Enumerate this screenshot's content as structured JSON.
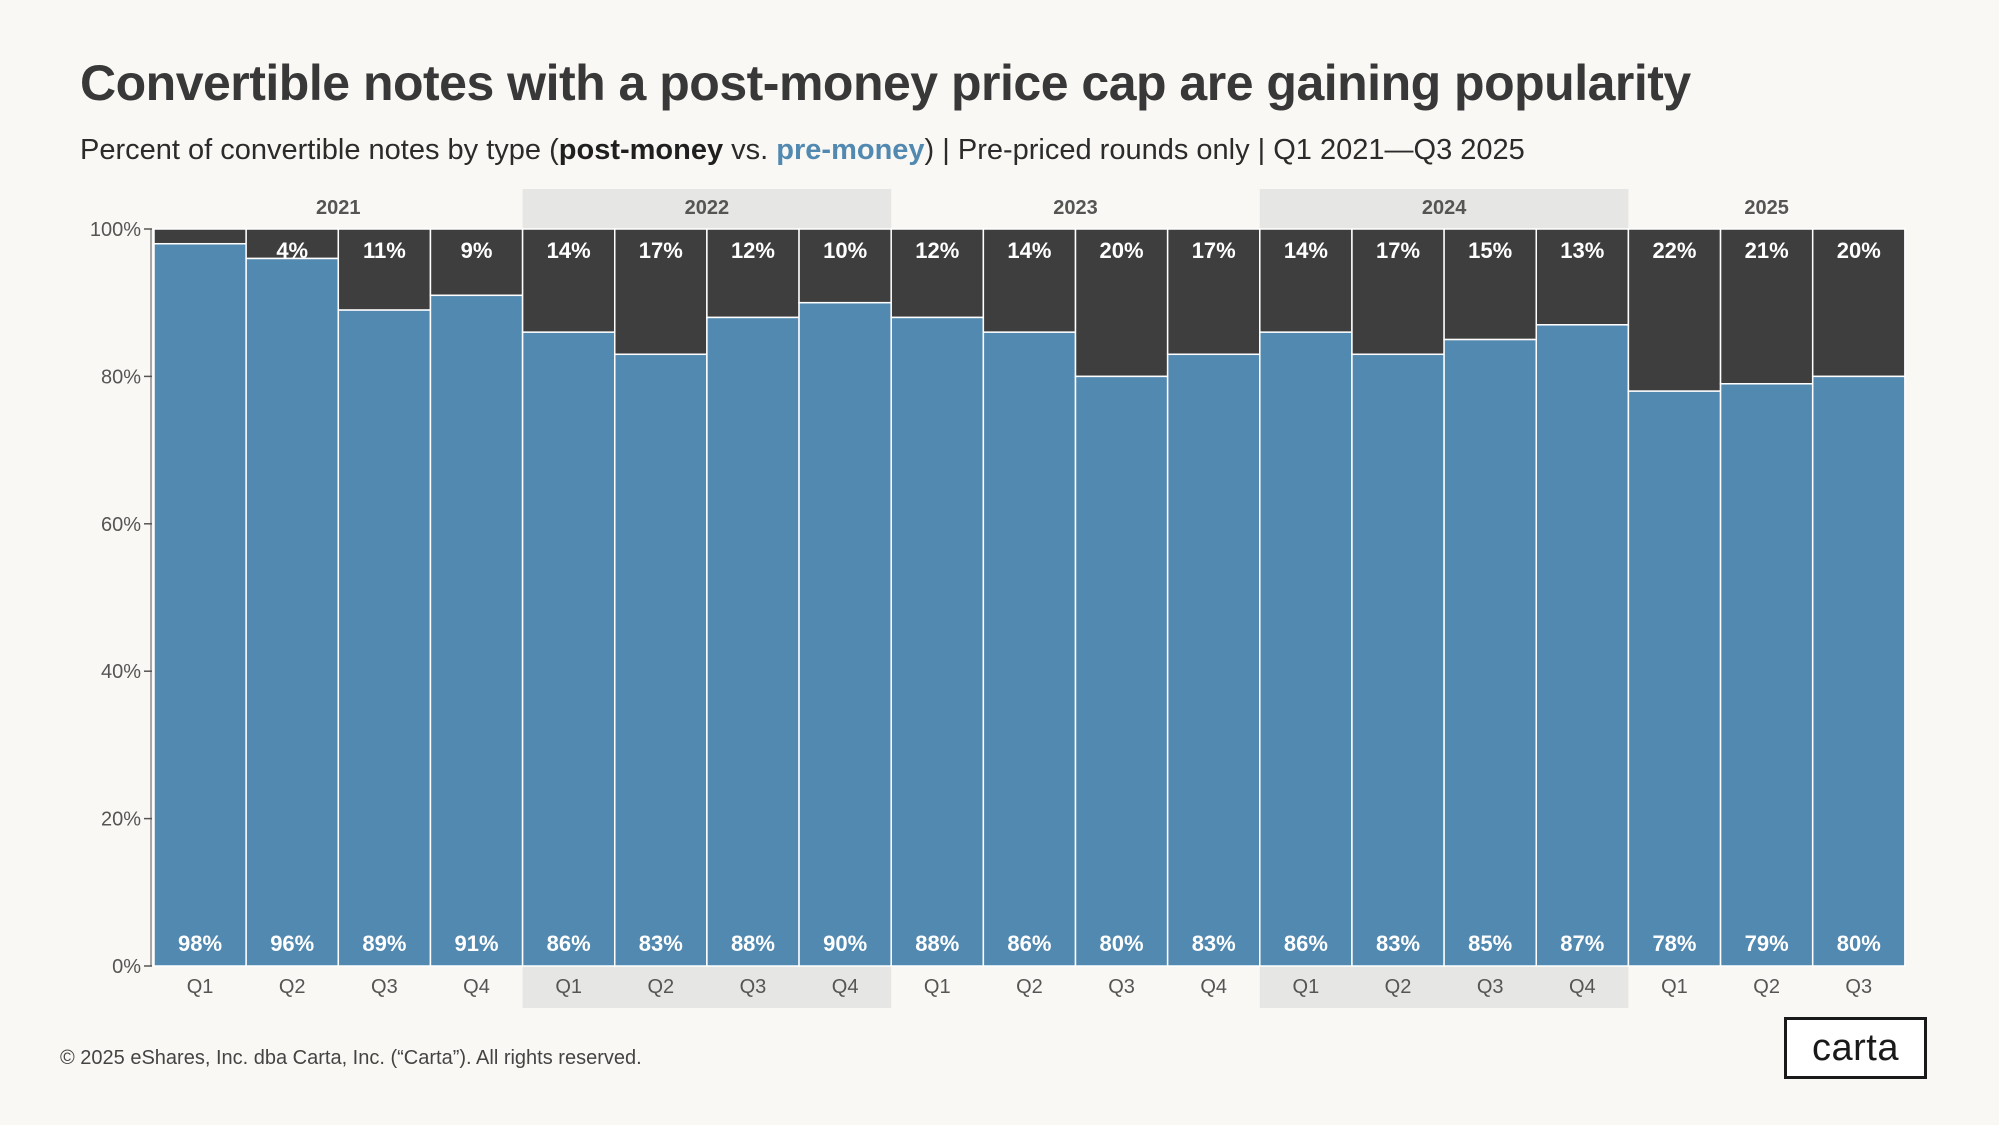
{
  "title": "Convertible notes with a post-money price cap are gaining popularity",
  "subtitle": {
    "prefix": "Percent of convertible notes by type (",
    "post_money": "post-money",
    "vs": " vs. ",
    "pre_money": "pre-money",
    "suffix": ") | Pre-priced rounds only | Q1 2021—Q3 2025"
  },
  "footer": "© 2025 eShares, Inc. dba Carta, Inc. (“Carta”). All rights reserved.",
  "logo": "carta",
  "colors": {
    "pre_money": "#5289b0",
    "post_money": "#3e3e3e",
    "year_band": "#e6e6e4",
    "background": "#faf8f4"
  },
  "chart_data": {
    "type": "bar",
    "stacked": true,
    "years": [
      {
        "label": "2021",
        "quarters": 4,
        "shaded": false
      },
      {
        "label": "2022",
        "quarters": 4,
        "shaded": true
      },
      {
        "label": "2023",
        "quarters": 4,
        "shaded": false
      },
      {
        "label": "2024",
        "quarters": 4,
        "shaded": true
      },
      {
        "label": "2025",
        "quarters": 3,
        "shaded": false
      }
    ],
    "categories": [
      "Q1",
      "Q2",
      "Q3",
      "Q4",
      "Q1",
      "Q2",
      "Q3",
      "Q4",
      "Q1",
      "Q2",
      "Q3",
      "Q4",
      "Q1",
      "Q2",
      "Q3",
      "Q4",
      "Q1",
      "Q2",
      "Q3"
    ],
    "series": [
      {
        "key": "pre_money",
        "values": [
          98,
          96,
          89,
          91,
          86,
          83,
          88,
          90,
          88,
          86,
          80,
          83,
          86,
          83,
          85,
          87,
          78,
          79,
          80
        ],
        "labels": [
          "98%",
          "96%",
          "89%",
          "91%",
          "86%",
          "83%",
          "88%",
          "90%",
          "88%",
          "86%",
          "80%",
          "83%",
          "86%",
          "83%",
          "85%",
          "87%",
          "78%",
          "79%",
          "80%"
        ]
      },
      {
        "key": "post_money",
        "values": [
          2,
          4,
          11,
          9,
          14,
          17,
          12,
          10,
          12,
          14,
          20,
          17,
          14,
          17,
          15,
          13,
          22,
          21,
          20
        ],
        "labels": [
          "",
          "4%",
          "11%",
          "9%",
          "14%",
          "17%",
          "12%",
          "10%",
          "12%",
          "14%",
          "20%",
          "17%",
          "14%",
          "17%",
          "15%",
          "13%",
          "22%",
          "21%",
          "20%"
        ]
      }
    ],
    "ylim": [
      0,
      100
    ],
    "yticks": [
      0,
      20,
      40,
      60,
      80,
      100
    ],
    "ytick_labels": [
      "0%",
      "20%",
      "40%",
      "60%",
      "80%",
      "100%"
    ]
  }
}
